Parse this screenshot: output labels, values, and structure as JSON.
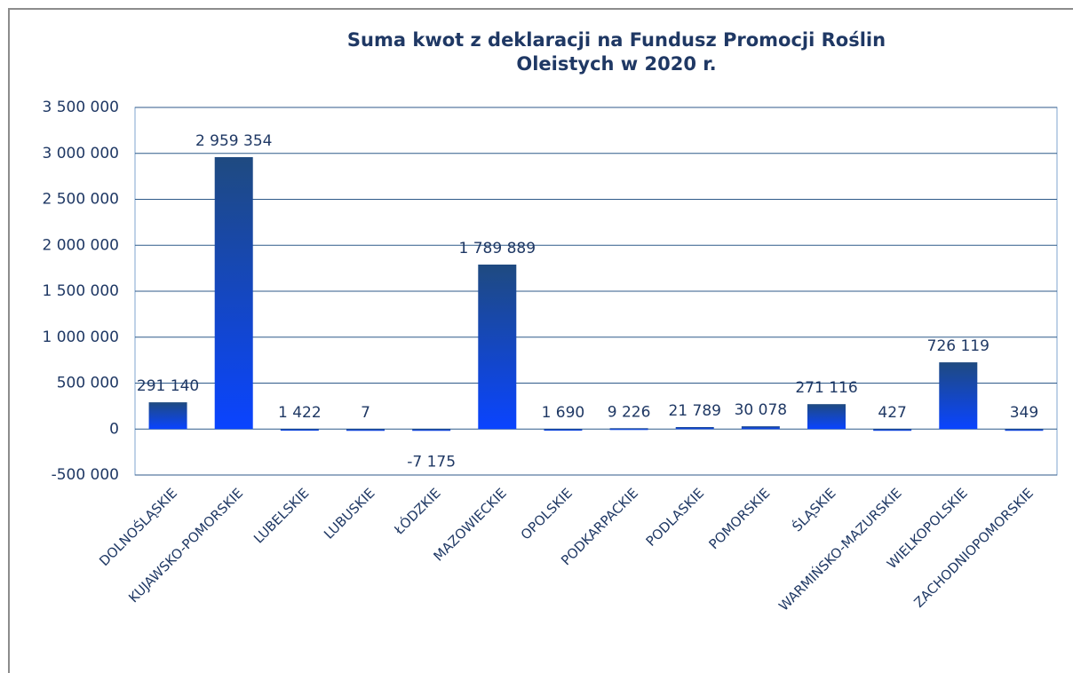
{
  "chart_data": {
    "type": "bar",
    "title": "Suma kwot z deklaracji na Fundusz Promocji Roślin Oleistych w 2020 r.",
    "categories": [
      "DOLNOŚLĄSKIE",
      "KUJAWSKO-POMORSKIE",
      "LUBELSKIE",
      "LUBUSKIE",
      "ŁÓDZKIE",
      "MAZOWIECKIE",
      "OPOLSKIE",
      "PODKARPACKIE",
      "PODLASKIE",
      "POMORSKIE",
      "ŚLĄSKIE",
      "WARMIŃSKO-MAZURSKIE",
      "WIELKOPOLSKIE",
      "ZACHODNIOPOMORSKIE"
    ],
    "values": [
      291140,
      2959354,
      1422,
      7,
      -7175,
      1789889,
      1690,
      9226,
      21789,
      30078,
      271116,
      427,
      726119,
      349
    ],
    "value_labels": [
      "291 140",
      "2 959 354",
      "1 422",
      "7",
      "-7 175",
      "1 789 889",
      "1 690",
      "9 226",
      "21 789",
      "30 078",
      "271 116",
      "427",
      "726 119",
      "349"
    ],
    "gradient": [
      "#1f4a80",
      "#0a44ff"
    ],
    "ylim": [
      -500000,
      3500000
    ],
    "yticks": [
      {
        "value": -500000,
        "label": "-500 000"
      },
      0,
      {
        "value": 500000,
        "label": "500 000"
      },
      {
        "value": 1000000,
        "label": "1 000 000"
      },
      {
        "value": 1500000,
        "label": "1 500 000"
      },
      {
        "value": 2000000,
        "label": "2 000 000"
      },
      {
        "value": 2500000,
        "label": "2 500 000"
      },
      {
        "value": 3000000,
        "label": "3 000 000"
      },
      {
        "value": 3500000,
        "label": "3 500 000"
      }
    ],
    "grid": true
  }
}
